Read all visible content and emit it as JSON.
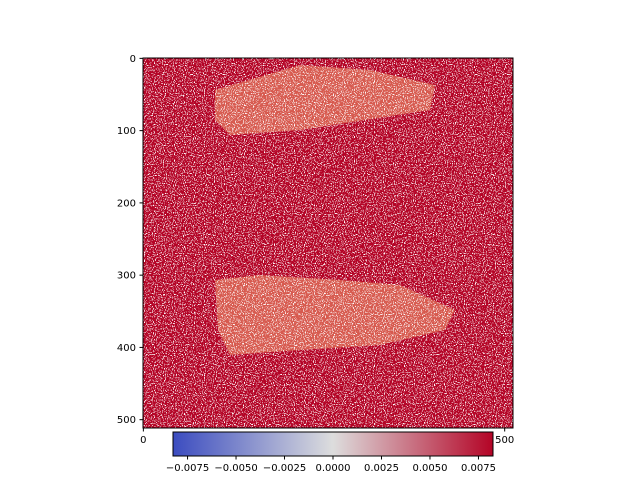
{
  "chart_data": {
    "type": "heatmap",
    "xlim": [
      -0.5,
      511.5
    ],
    "ylim": [
      511.5,
      -0.5
    ],
    "xticks": [
      0,
      500
    ],
    "yticks": [
      0,
      100,
      200,
      300,
      400,
      500
    ],
    "colormap_colors": [
      "#3b4cc0",
      "#dddddd",
      "#b40426"
    ],
    "colorbar": {
      "lim": [
        -0.00825,
        0.00825
      ],
      "ticks": [
        {
          "value": -0.0075,
          "label": "−0.0075"
        },
        {
          "value": -0.005,
          "label": "−0.0050"
        },
        {
          "value": -0.0025,
          "label": "−0.0025"
        },
        {
          "value": 0,
          "label": "0.0000"
        },
        {
          "value": 0.0025,
          "label": "0.0025"
        },
        {
          "value": 0.005,
          "label": "0.0050"
        },
        {
          "value": 0.0075,
          "label": "0.0075"
        }
      ]
    }
  }
}
